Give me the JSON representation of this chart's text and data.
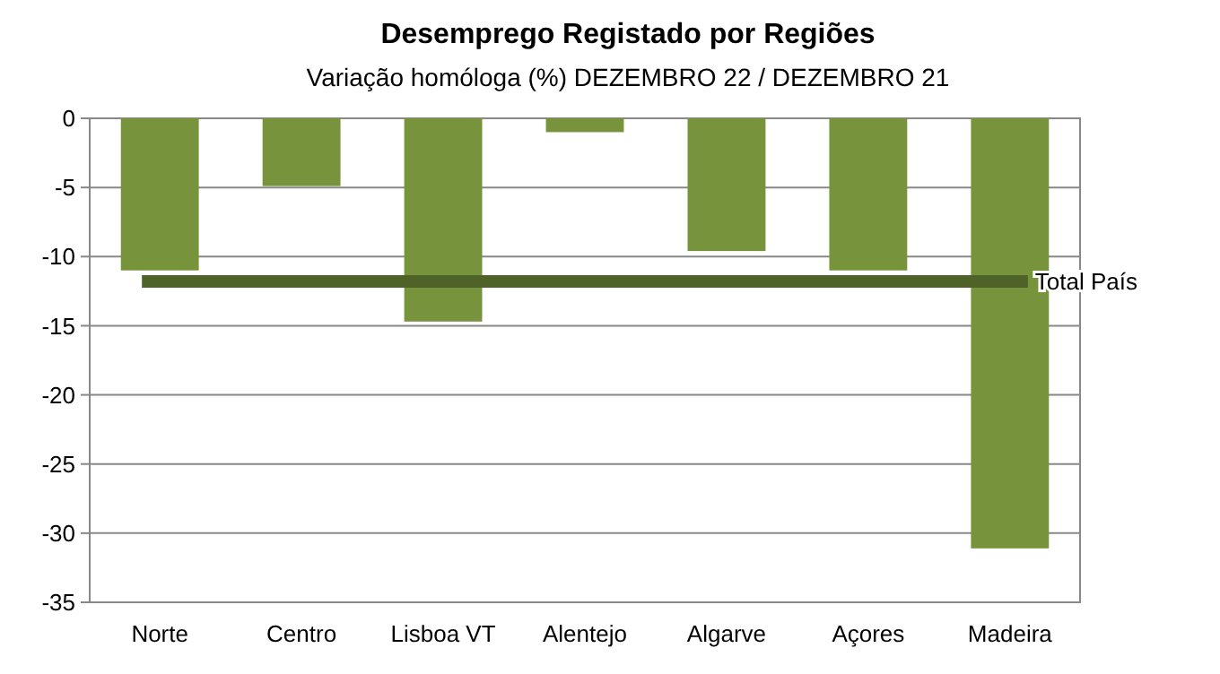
{
  "chart_data": {
    "type": "bar",
    "title": "Desemprego Registado por Regiões",
    "subtitle": "Variação homóloga (%) DEZEMBRO 22 / DEZEMBRO 21",
    "categories": [
      "Norte",
      "Centro",
      "Lisboa VT",
      "Alentejo",
      "Algarve",
      "Açores",
      "Madeira"
    ],
    "values": [
      -11,
      -4.9,
      -14.7,
      -1,
      -9.6,
      -11,
      -31.1
    ],
    "color": "#77933c",
    "ylim": [
      -35,
      0
    ],
    "yticks": [
      -35,
      -30,
      -25,
      -20,
      -15,
      -10,
      -5,
      0
    ],
    "grid": "y",
    "ref_lines": [
      {
        "axis": "y",
        "value": -11.8,
        "label": "Total  País",
        "color": "#4f6228"
      }
    ]
  }
}
